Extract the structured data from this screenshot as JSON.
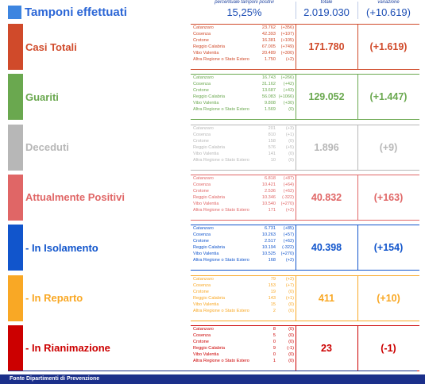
{
  "header": {
    "positivity_caption": "percentuale tamponi positivi",
    "total_caption": "totale",
    "variation_caption": "variazione",
    "title": "Tamponi effettuati",
    "positivity": "15,25%",
    "total": "2.019.030",
    "variation": "(+10.619)"
  },
  "rows": [
    {
      "label": "Casi Totali",
      "color": "#d04a2a",
      "total": "171.780",
      "variation": "(+1.619)",
      "provinces": [
        {
          "name": "Catanzaro",
          "value": "23.762",
          "delta": "(+356)"
        },
        {
          "name": "Cosenza",
          "value": "42.393",
          "delta": "(+107)"
        },
        {
          "name": "Crotone",
          "value": "16.381",
          "delta": "(+105)"
        },
        {
          "name": "Reggio Calabria",
          "value": "67.005",
          "delta": "(+749)"
        },
        {
          "name": "Vibo Valentia",
          "value": "20.489",
          "delta": "(+300)"
        },
        {
          "name": "Altra Regione o Stato Estero",
          "value": "1.750",
          "delta": "(+2)"
        }
      ]
    },
    {
      "label": "Guariti",
      "color": "#6aa84f",
      "total": "129.052",
      "variation": "(+1.447)",
      "provinces": [
        {
          "name": "Catanzaro",
          "value": "16.743",
          "delta": "(+266)"
        },
        {
          "name": "Cosenza",
          "value": "31.162",
          "delta": "(+42)"
        },
        {
          "name": "Crotone",
          "value": "13.687",
          "delta": "(+43)"
        },
        {
          "name": "Reggio Calabria",
          "value": "56.083",
          "delta": "(+1066)"
        },
        {
          "name": "Vibo Valentia",
          "value": "9.808",
          "delta": "(+30)"
        },
        {
          "name": "Altra Regione o Stato Estero",
          "value": "1.569",
          "delta": "(0)"
        }
      ]
    },
    {
      "label": "Deceduti",
      "color": "#b7b7b7",
      "total": "1.896",
      "variation": "(+9)",
      "provinces": [
        {
          "name": "Catanzaro",
          "value": "201",
          "delta": "(+3)"
        },
        {
          "name": "Cosenza",
          "value": "810",
          "delta": "(+1)"
        },
        {
          "name": "Crotone",
          "value": "158",
          "delta": "(0)"
        },
        {
          "name": "Reggio Calabria",
          "value": "576",
          "delta": "(+5)"
        },
        {
          "name": "Vibo Valentia",
          "value": "141",
          "delta": "(0)"
        },
        {
          "name": "Altra Regione o Stato Estero",
          "value": "10",
          "delta": "(0)"
        }
      ]
    },
    {
      "label": "Attualmente Positivi",
      "color": "#e06666",
      "total": "40.832",
      "variation": "(+163)",
      "provinces": [
        {
          "name": "Catanzaro",
          "value": "6.818",
          "delta": "(+87)"
        },
        {
          "name": "Cosenza",
          "value": "10.421",
          "delta": "(+64)"
        },
        {
          "name": "Crotone",
          "value": "2.536",
          "delta": "(+62)"
        },
        {
          "name": "Reggio Calabria",
          "value": "10.346",
          "delta": "(-322)"
        },
        {
          "name": "Vibo Valentia",
          "value": "10.540",
          "delta": "(+270)"
        },
        {
          "name": "Altra Regione o Stato Estero",
          "value": "171",
          "delta": "(+2)"
        }
      ]
    },
    {
      "label": "- In Isolamento",
      "color": "#1155cc",
      "total": "40.398",
      "variation": "(+154)",
      "provinces": [
        {
          "name": "Catanzaro",
          "value": "6.731",
          "delta": "(+85)"
        },
        {
          "name": "Cosenza",
          "value": "10.263",
          "delta": "(+57)"
        },
        {
          "name": "Crotone",
          "value": "2.517",
          "delta": "(+62)"
        },
        {
          "name": "Reggio Calabria",
          "value": "10.194",
          "delta": "(-322)"
        },
        {
          "name": "Vibo Valentia",
          "value": "10.525",
          "delta": "(+270)"
        },
        {
          "name": "Altra Regione o Stato Estero",
          "value": "168",
          "delta": "(+2)"
        }
      ]
    },
    {
      "label": "- In Reparto",
      "color": "#f9a825",
      "total": "411",
      "variation": "(+10)",
      "provinces": [
        {
          "name": "Catanzaro",
          "value": "79",
          "delta": "(+2)"
        },
        {
          "name": "Cosenza",
          "value": "153",
          "delta": "(+7)"
        },
        {
          "name": "Crotone",
          "value": "19",
          "delta": "(0)"
        },
        {
          "name": "Reggio Calabria",
          "value": "143",
          "delta": "(+1)"
        },
        {
          "name": "Vibo Valentia",
          "value": "15",
          "delta": "(0)"
        },
        {
          "name": "Altra Regione o Stato Estero",
          "value": "2",
          "delta": "(0)"
        }
      ]
    },
    {
      "label": "- In Rianimazione",
      "color": "#cc0000",
      "total": "23",
      "variation": "(-1)",
      "provinces": [
        {
          "name": "Catanzaro",
          "value": "8",
          "delta": "(0)"
        },
        {
          "name": "Cosenza",
          "value": "5",
          "delta": "(0)"
        },
        {
          "name": "Crotone",
          "value": "0",
          "delta": "(0)"
        },
        {
          "name": "Reggio Calabria",
          "value": "9",
          "delta": "(-1)"
        },
        {
          "name": "Vibo Valentia",
          "value": "0",
          "delta": "(0)"
        },
        {
          "name": "Altra Regione o Stato Estero",
          "value": "1",
          "delta": "(0)"
        }
      ]
    }
  ],
  "footer": {
    "source": "Fonte Dipartimenti di Prevenzione"
  }
}
